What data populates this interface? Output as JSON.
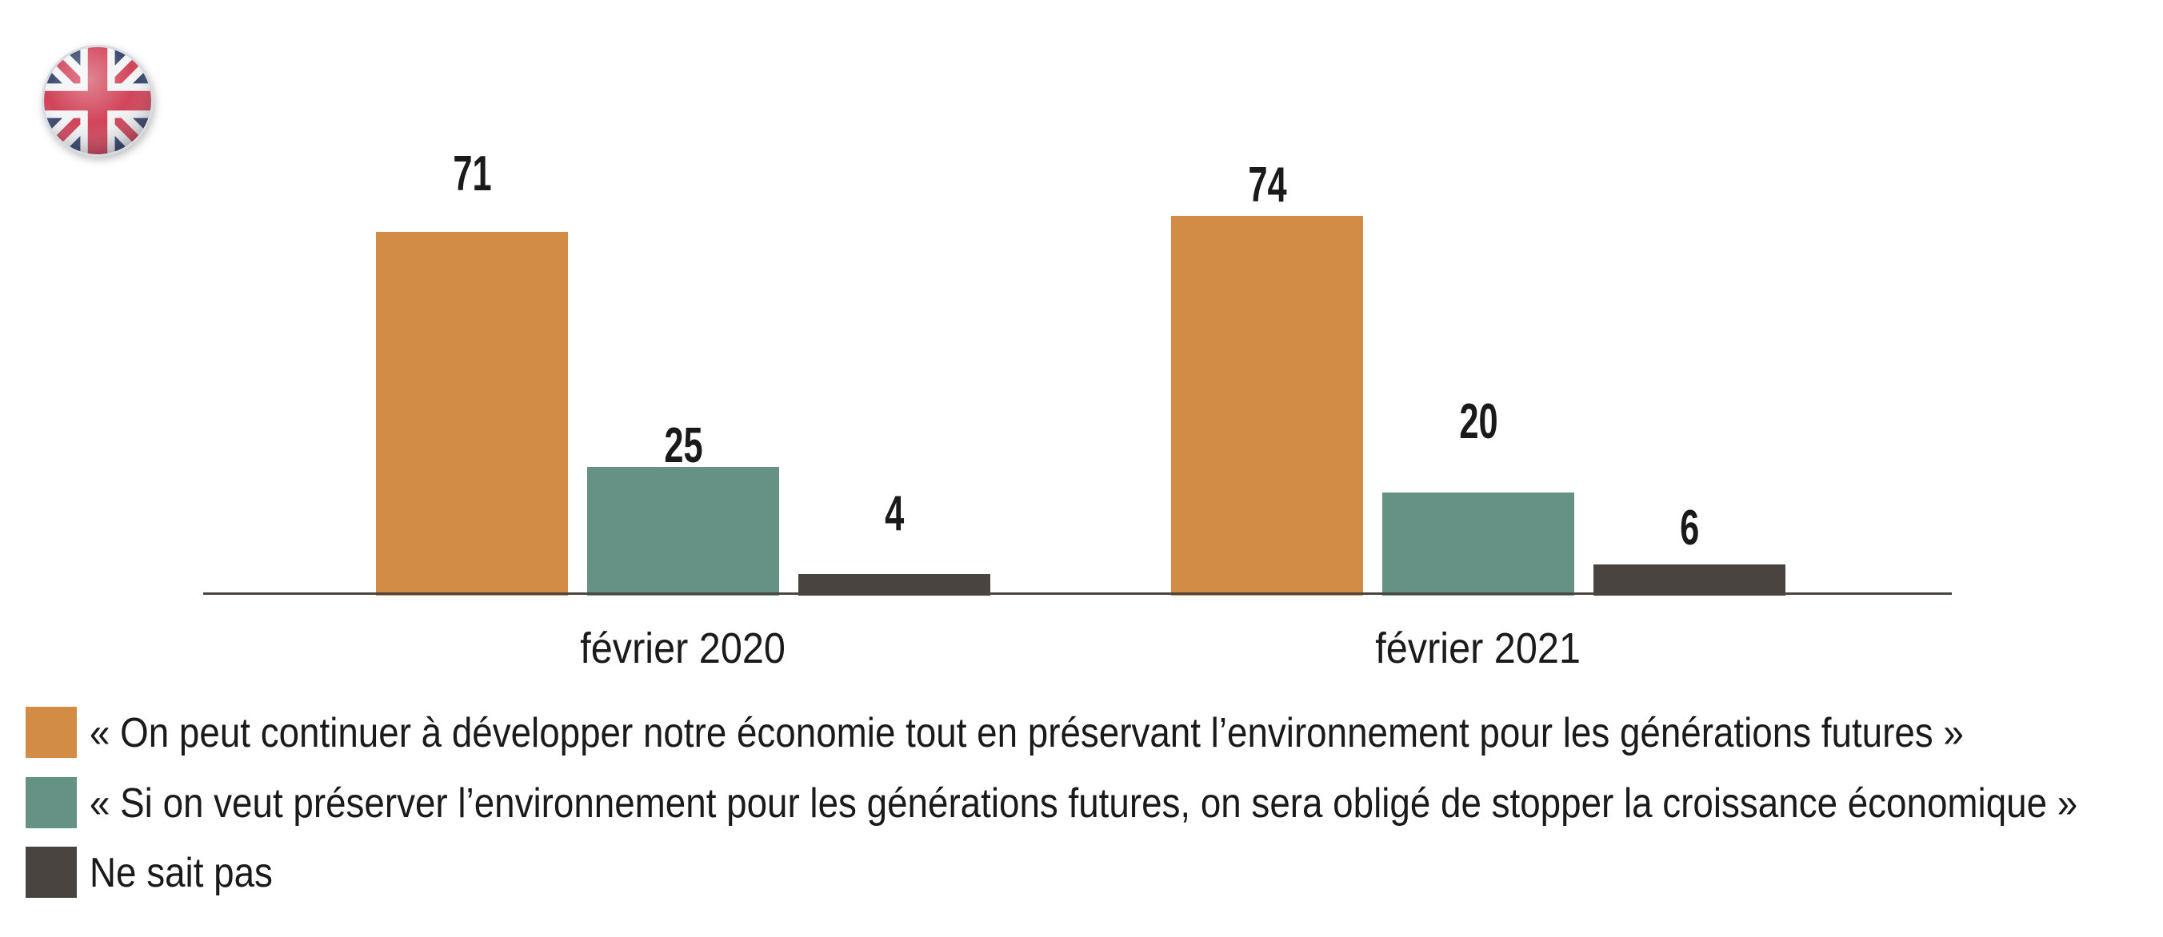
{
  "page": {
    "background": "#ffffff"
  },
  "icons": {
    "flag": "uk-flag-round-icon"
  },
  "chart_data": {
    "type": "bar",
    "categories": [
      "février 2020",
      "février 2021"
    ],
    "series": [
      {
        "name": "« On peut continuer à développer notre économie tout en préservant l’environnement pour les générations futures »",
        "color": "#D38C45",
        "values": [
          71,
          74
        ]
      },
      {
        "name": "« Si on veut préserver l’environnement pour les générations futures, on sera obligé de stopper la croissance économique »",
        "color": "#669285",
        "values": [
          25,
          20
        ]
      },
      {
        "name": "Ne sait pas",
        "color": "#494440",
        "values": [
          4,
          6
        ]
      }
    ],
    "title": "",
    "xlabel": "",
    "ylabel": "",
    "ylim": [
      0,
      100
    ],
    "grid": false,
    "value_labels": true,
    "legend_position": "bottom-left",
    "axis_color": "#4a4541",
    "text_color": "#1a1a1a"
  }
}
